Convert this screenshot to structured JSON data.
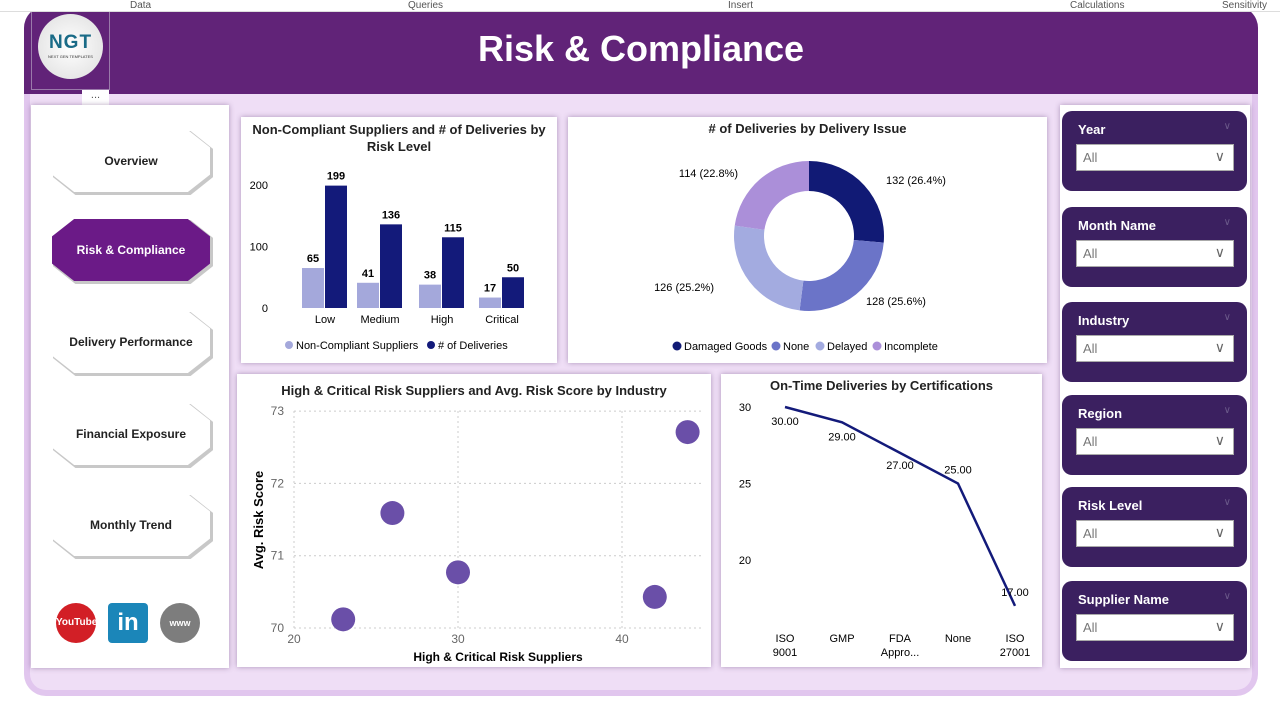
{
  "ribbon": [
    "Data",
    "Queries",
    "Insert",
    "Calculations",
    "Sensitivity"
  ],
  "header": {
    "title": "Risk & Compliance",
    "logo_text": "NGT",
    "logo_sub": "NEXT GEN TEMPLATES",
    "more": "..."
  },
  "nav": {
    "items": [
      {
        "label": "Overview",
        "active": false
      },
      {
        "label": "Risk & Compliance",
        "active": true
      },
      {
        "label": "Delivery Performance",
        "active": false
      },
      {
        "label": "Financial Exposure",
        "active": false
      },
      {
        "label": "Monthly Trend",
        "active": false
      }
    ],
    "social": [
      {
        "icon": "youtube-icon",
        "label": "YouTube",
        "color": "#d21f26"
      },
      {
        "icon": "linkedin-icon",
        "label": "in",
        "color": "#1b86b9"
      },
      {
        "icon": "globe-icon",
        "label": "www",
        "color": "#7d7d7d"
      }
    ]
  },
  "slicers": [
    {
      "label": "Year",
      "value": "All"
    },
    {
      "label": "Month Name",
      "value": "All"
    },
    {
      "label": "Industry",
      "value": "All"
    },
    {
      "label": "Region",
      "value": "All"
    },
    {
      "label": "Risk Level",
      "value": "All"
    },
    {
      "label": "Supplier Name",
      "value": "All"
    }
  ],
  "colors": {
    "header": "#612378",
    "active_nav": "#6b1a87",
    "slicer": "#3b2060",
    "light_bar": "#a4a8db",
    "dark_bar": "#131a7a",
    "bubble": "#6a4fa8",
    "line": "#131a7a"
  },
  "chart_data": [
    {
      "type": "bar",
      "title": "Non-Compliant Suppliers and # of Deliveries by Risk Level",
      "categories": [
        "Low",
        "Medium",
        "High",
        "Critical"
      ],
      "series": [
        {
          "name": "Non-Compliant Suppliers",
          "values": [
            65,
            41,
            38,
            17
          ],
          "color": "#a4a8db"
        },
        {
          "name": "# of Deliveries",
          "values": [
            199,
            136,
            115,
            50
          ],
          "color": "#131a7a"
        }
      ],
      "yticks": [
        0,
        100,
        200
      ],
      "ylim": [
        0,
        200
      ],
      "legend": "bottom"
    },
    {
      "type": "pie",
      "title": "# of Deliveries by Delivery Issue",
      "donut": true,
      "slices": [
        {
          "name": "Damaged Goods",
          "value": 132,
          "label": "132 (26.4%)",
          "color": "#111a75"
        },
        {
          "name": "None",
          "value": 128,
          "label": "128 (25.6%)",
          "color": "#6b74c8"
        },
        {
          "name": "Delayed",
          "value": 126,
          "label": "126 (25.2%)",
          "color": "#a3abe0"
        },
        {
          "name": "Incomplete",
          "value": 114,
          "label": "114 (22.8%)",
          "color": "#ab8fd9"
        }
      ],
      "legend": "bottom"
    },
    {
      "type": "scatter",
      "title": "High & Critical Risk Suppliers and Avg. Risk Score by Industry",
      "xlabel": "High & Critical Risk Suppliers",
      "ylabel": "Avg. Risk Score",
      "xticks": [
        20,
        30,
        40
      ],
      "yticks": [
        70,
        71,
        72,
        73
      ],
      "xlim": [
        20,
        45
      ],
      "ylim": [
        70,
        73
      ],
      "grid": true,
      "points": [
        {
          "x": 23,
          "y": 70.12
        },
        {
          "x": 26,
          "y": 71.59
        },
        {
          "x": 30,
          "y": 70.77
        },
        {
          "x": 42,
          "y": 70.43
        },
        {
          "x": 44,
          "y": 72.71
        }
      ]
    },
    {
      "type": "line",
      "title": "On-Time Deliveries by Certifications",
      "categories": [
        "ISO 9001",
        "GMP",
        "FDA Appro...",
        "None",
        "ISO 27001"
      ],
      "values": [
        30,
        29,
        27,
        25,
        17
      ],
      "labels": [
        "30.00",
        "29.00",
        "27.00",
        "25.00",
        "17.00"
      ],
      "yticks": [
        20,
        25,
        30
      ],
      "ylim": [
        15,
        30
      ]
    }
  ]
}
